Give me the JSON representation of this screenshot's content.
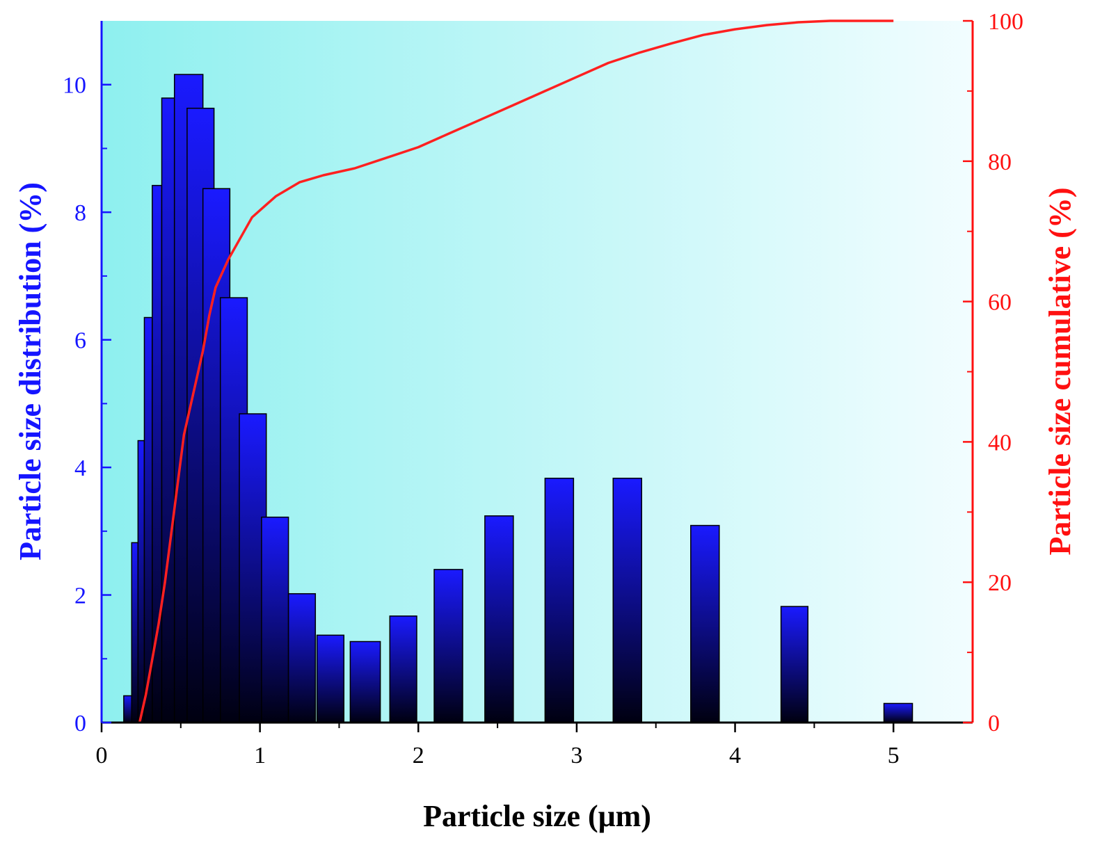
{
  "chart_data": {
    "type": "bar",
    "xlabel": "Particle size (μm)",
    "ylabel": "Particle size distribution (%)",
    "y2label": "Particle size cumulative (%)",
    "xlim": [
      0,
      5.5
    ],
    "ylim": [
      0,
      11
    ],
    "y2lim": [
      0,
      100
    ],
    "xticks": [
      "0",
      "1",
      "2",
      "3",
      "4",
      "5"
    ],
    "yticks": [
      "0",
      "2",
      "4",
      "6",
      "8",
      "10"
    ],
    "y2ticks": [
      "0",
      "20",
      "40",
      "60",
      "80",
      "100"
    ],
    "grid": false,
    "legend": "none",
    "colors": {
      "left_axis": "#1515ff",
      "right_axis": "#ff1010",
      "bar_top": "#1a1aff",
      "bar_bottom": "#000010",
      "plot_bg_left": "#8ef0ef",
      "plot_bg_right": "#f2fdff",
      "cumulative_line": "#ff2020"
    },
    "series": [
      {
        "type": "bar",
        "axis": "left",
        "bars": [
          {
            "x0": 0.14,
            "x1": 0.19,
            "value": 0.42
          },
          {
            "x0": 0.19,
            "x1": 0.23,
            "value": 2.82
          },
          {
            "x0": 0.23,
            "x1": 0.27,
            "value": 4.42
          },
          {
            "x0": 0.27,
            "x1": 0.32,
            "value": 6.35
          },
          {
            "x0": 0.32,
            "x1": 0.38,
            "value": 8.42
          },
          {
            "x0": 0.38,
            "x1": 0.46,
            "value": 9.79
          },
          {
            "x0": 0.46,
            "x1": 0.64,
            "value": 10.16
          },
          {
            "x0": 0.54,
            "x1": 0.71,
            "value": 9.63
          },
          {
            "x0": 0.64,
            "x1": 0.81,
            "value": 8.37
          },
          {
            "x0": 0.75,
            "x1": 0.92,
            "value": 6.66
          },
          {
            "x0": 0.87,
            "x1": 1.04,
            "value": 4.84
          },
          {
            "x0": 1.01,
            "x1": 1.18,
            "value": 3.22
          },
          {
            "x0": 1.18,
            "x1": 1.35,
            "value": 2.02
          },
          {
            "x0": 1.36,
            "x1": 1.53,
            "value": 1.37
          },
          {
            "x0": 1.57,
            "x1": 1.76,
            "value": 1.27
          },
          {
            "x0": 1.82,
            "x1": 1.99,
            "value": 1.67
          },
          {
            "x0": 2.1,
            "x1": 2.28,
            "value": 2.4
          },
          {
            "x0": 2.42,
            "x1": 2.6,
            "value": 3.24
          },
          {
            "x0": 2.8,
            "x1": 2.98,
            "value": 3.83
          },
          {
            "x0": 3.23,
            "x1": 3.41,
            "value": 3.83
          },
          {
            "x0": 3.72,
            "x1": 3.9,
            "value": 3.09
          },
          {
            "x0": 4.29,
            "x1": 4.46,
            "value": 1.82
          },
          {
            "x0": 4.94,
            "x1": 5.12,
            "value": 0.3
          }
        ]
      },
      {
        "type": "line",
        "axis": "right",
        "x": [
          0.24,
          0.28,
          0.32,
          0.36,
          0.4,
          0.44,
          0.48,
          0.52,
          0.56,
          0.6,
          0.64,
          0.68,
          0.72,
          0.76,
          0.8,
          0.85,
          0.9,
          0.95,
          1.0,
          1.1,
          1.25,
          1.4,
          1.6,
          1.8,
          2.0,
          2.2,
          2.4,
          2.6,
          2.8,
          3.0,
          3.2,
          3.4,
          3.6,
          3.8,
          4.0,
          4.2,
          4.4,
          4.6,
          5.0
        ],
        "y": [
          0,
          4,
          9,
          14,
          20,
          27,
          34,
          41,
          45,
          49,
          53,
          58,
          62,
          64,
          66,
          68,
          70,
          72,
          73,
          75,
          77,
          78,
          79,
          80.5,
          82,
          84,
          86,
          88,
          90,
          92,
          94,
          95.5,
          96.8,
          98,
          98.8,
          99.4,
          99.8,
          100,
          100
        ]
      }
    ]
  }
}
